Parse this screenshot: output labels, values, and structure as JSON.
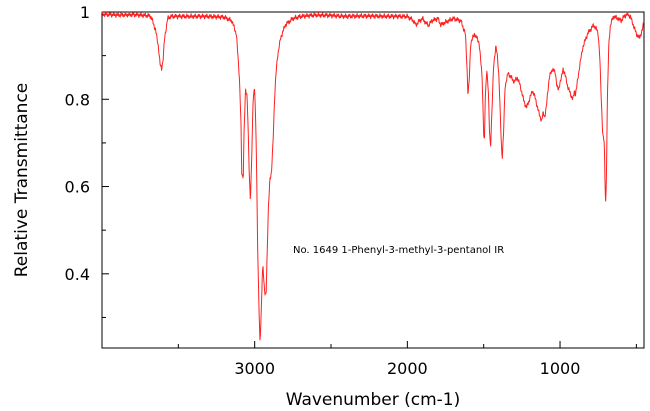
{
  "chart_data": {
    "type": "line",
    "title": "",
    "annotation": "No. 1649 1-Phenyl-3-methyl-3-pentanol IR",
    "xlabel": "Wavenumber (cm-1)",
    "ylabel": "Relative Transmittance",
    "xlim": [
      4000,
      450
    ],
    "ylim": [
      0.23,
      1.0
    ],
    "x_reversed": true,
    "x_ticks": [
      3000,
      2000,
      1000
    ],
    "x_tick_labels": [
      "3000",
      "2000",
      "1000"
    ],
    "y_ticks": [
      1.0,
      0.8,
      0.6,
      0.4
    ],
    "y_tick_labels": [
      "1",
      "0.8",
      "0.6",
      "0.4"
    ],
    "grid": false,
    "legend": "none",
    "series_color": "#ff2020",
    "series": [
      {
        "x": [
          4000,
          3900,
          3800,
          3700,
          3680,
          3650,
          3630,
          3620,
          3610,
          3600,
          3590,
          3570,
          3550,
          3450,
          3300,
          3200,
          3150,
          3120,
          3100,
          3090,
          3085,
          3075,
          3070,
          3060,
          3050,
          3045,
          3035,
          3028,
          3020,
          3010,
          3000,
          2990,
          2980,
          2970,
          2965,
          2958,
          2950,
          2945,
          2940,
          2932,
          2925,
          2918,
          2910,
          2900,
          2890,
          2880,
          2870,
          2860,
          2850,
          2830,
          2800,
          2750,
          2700,
          2600,
          2500,
          2400,
          2300,
          2100,
          2000,
          1960,
          1945,
          1920,
          1900,
          1880,
          1860,
          1840,
          1800,
          1780,
          1760,
          1700,
          1650,
          1620,
          1610,
          1603,
          1595,
          1585,
          1560,
          1530,
          1510,
          1500,
          1495,
          1490,
          1480,
          1470,
          1462,
          1455,
          1445,
          1435,
          1420,
          1410,
          1400,
          1390,
          1382,
          1378,
          1370,
          1360,
          1340,
          1320,
          1300,
          1280,
          1260,
          1240,
          1220,
          1200,
          1180,
          1160,
          1140,
          1130,
          1120,
          1110,
          1100,
          1090,
          1080,
          1070,
          1050,
          1030,
          1020,
          1010,
          1000,
          990,
          980,
          970,
          950,
          930,
          915,
          905,
          900,
          890,
          870,
          850,
          820,
          800,
          780,
          760,
          750,
          740,
          730,
          720,
          710,
          705,
          700,
          695,
          690,
          680,
          670,
          650,
          620,
          600,
          580,
          560,
          540,
          520,
          500,
          480,
          460,
          450
        ],
        "y": [
          0.995,
          0.993,
          0.994,
          0.992,
          0.99,
          0.96,
          0.92,
          0.88,
          0.87,
          0.89,
          0.94,
          0.985,
          0.99,
          0.99,
          0.99,
          0.988,
          0.98,
          0.95,
          0.85,
          0.75,
          0.63,
          0.62,
          0.72,
          0.82,
          0.81,
          0.76,
          0.62,
          0.57,
          0.66,
          0.8,
          0.83,
          0.7,
          0.45,
          0.3,
          0.24,
          0.3,
          0.4,
          0.42,
          0.38,
          0.35,
          0.36,
          0.45,
          0.55,
          0.62,
          0.63,
          0.7,
          0.8,
          0.86,
          0.9,
          0.94,
          0.97,
          0.985,
          0.99,
          0.993,
          0.992,
          0.99,
          0.991,
          0.99,
          0.99,
          0.98,
          0.97,
          0.98,
          0.985,
          0.975,
          0.97,
          0.98,
          0.985,
          0.97,
          0.975,
          0.985,
          0.98,
          0.95,
          0.88,
          0.81,
          0.84,
          0.93,
          0.95,
          0.93,
          0.85,
          0.72,
          0.7,
          0.8,
          0.87,
          0.82,
          0.73,
          0.69,
          0.78,
          0.88,
          0.92,
          0.9,
          0.85,
          0.75,
          0.68,
          0.67,
          0.72,
          0.83,
          0.86,
          0.85,
          0.84,
          0.85,
          0.83,
          0.8,
          0.78,
          0.8,
          0.82,
          0.8,
          0.77,
          0.76,
          0.75,
          0.77,
          0.76,
          0.78,
          0.82,
          0.85,
          0.87,
          0.86,
          0.83,
          0.82,
          0.84,
          0.85,
          0.87,
          0.86,
          0.83,
          0.81,
          0.8,
          0.82,
          0.81,
          0.83,
          0.88,
          0.92,
          0.95,
          0.96,
          0.97,
          0.96,
          0.95,
          0.9,
          0.8,
          0.72,
          0.7,
          0.6,
          0.56,
          0.65,
          0.8,
          0.93,
          0.97,
          0.99,
          0.985,
          0.98,
          0.99,
          0.995,
          0.99,
          0.97,
          0.95,
          0.94,
          0.96,
          0.98
        ]
      }
    ]
  }
}
